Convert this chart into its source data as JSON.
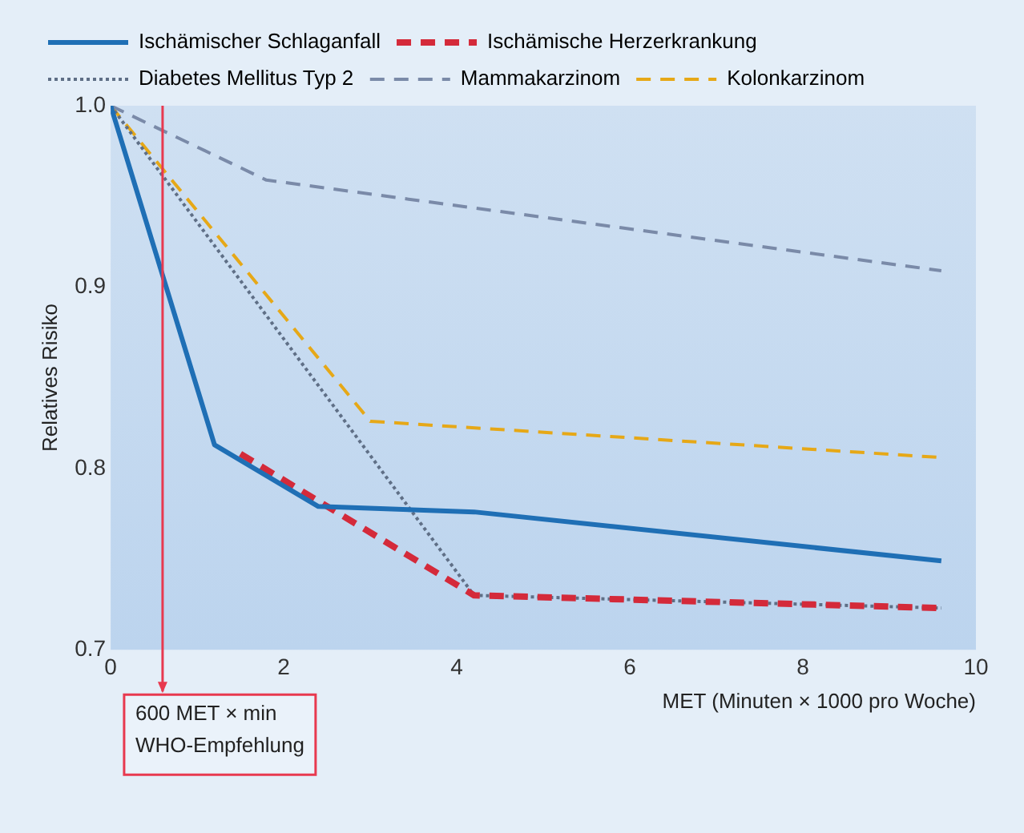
{
  "chart_data": {
    "type": "line",
    "xlabel": "MET (Minuten × 1000 pro Woche)",
    "ylabel": "Relatives Risiko",
    "xlim": [
      0,
      10
    ],
    "xticks": [
      0,
      2,
      4,
      6,
      8,
      10
    ],
    "ylim": [
      0.7,
      1.0
    ],
    "yticks": [
      {
        "value": 0.7,
        "label": "0.7"
      },
      {
        "value": 0.8,
        "label": "0.8"
      },
      {
        "value": 0.9,
        "label": "0.9"
      },
      {
        "value": 1.0,
        "label": "1.0"
      }
    ],
    "grid": false,
    "legend": "top",
    "marker": "none",
    "series": [
      {
        "name": "Ischämischer Schlaganfall",
        "color": "#1f6fb5",
        "line_style": "solid",
        "x": [
          0,
          1.2,
          2.4,
          4.2,
          9.6
        ],
        "values": [
          1.0,
          0.813,
          0.779,
          0.776,
          0.749
        ]
      },
      {
        "name": "Ischämische Herzerkrankung",
        "color": "#d42a3a",
        "line_style": "dashed",
        "x": [
          1.5,
          4.2,
          9.6
        ],
        "values": [
          0.808,
          0.73,
          0.723
        ]
      },
      {
        "name": "Diabetes Mellitus Typ 2",
        "color": "#5f6f86",
        "line_style": "dotted",
        "x": [
          0,
          4.2,
          9.6
        ],
        "values": [
          1.0,
          0.73,
          0.723
        ]
      },
      {
        "name": "Mammakarzinom",
        "color": "#7a8aa8",
        "line_style": "dashed",
        "x": [
          0,
          1.8,
          9.6
        ],
        "values": [
          1.0,
          0.959,
          0.909
        ]
      },
      {
        "name": "Kolonkarzinom",
        "color": "#e6a817",
        "line_style": "dashed",
        "x": [
          0,
          3.0,
          9.6
        ],
        "values": [
          1.0,
          0.826,
          0.806
        ]
      }
    ],
    "ref_lines": [
      {
        "axis": "x",
        "value": 0.6,
        "label": "600 MET × min\nWHO-Empfehlung",
        "color": "#e8394f"
      }
    ]
  }
}
